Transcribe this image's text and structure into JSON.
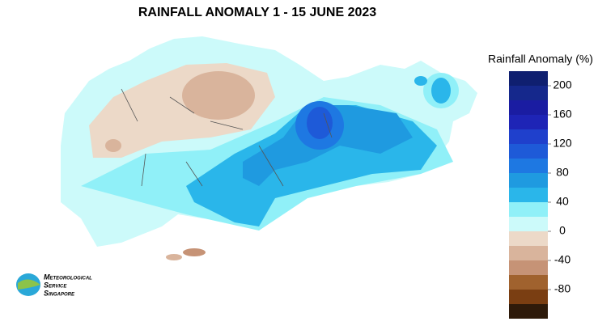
{
  "title": "RAINFALL ANOMALY 1 - 15 JUNE 2023",
  "legend": {
    "title": "Rainfall Anomaly (%)",
    "bins": [
      220,
      200,
      180,
      160,
      140,
      120,
      100,
      80,
      60,
      40,
      20,
      0,
      -20,
      -40,
      -60,
      -80,
      -100,
      -120
    ],
    "colors": [
      "#0f1f70",
      "#15288c",
      "#1a1ca2",
      "#1e24b6",
      "#1f40cc",
      "#1e5ad8",
      "#1e78e2",
      "#1f9ae0",
      "#2ab6ea",
      "#90f0f8",
      "#ccfafa",
      "#ecd9c8",
      "#d9b49c",
      "#c69376",
      "#a0622e",
      "#7a3e12",
      "#2e1a0a"
    ],
    "ticks": [
      200,
      160,
      120,
      80,
      40,
      0,
      -40,
      -80
    ]
  },
  "logo": {
    "lines": [
      "Meteorological",
      "Service",
      "Singapore"
    ]
  }
}
